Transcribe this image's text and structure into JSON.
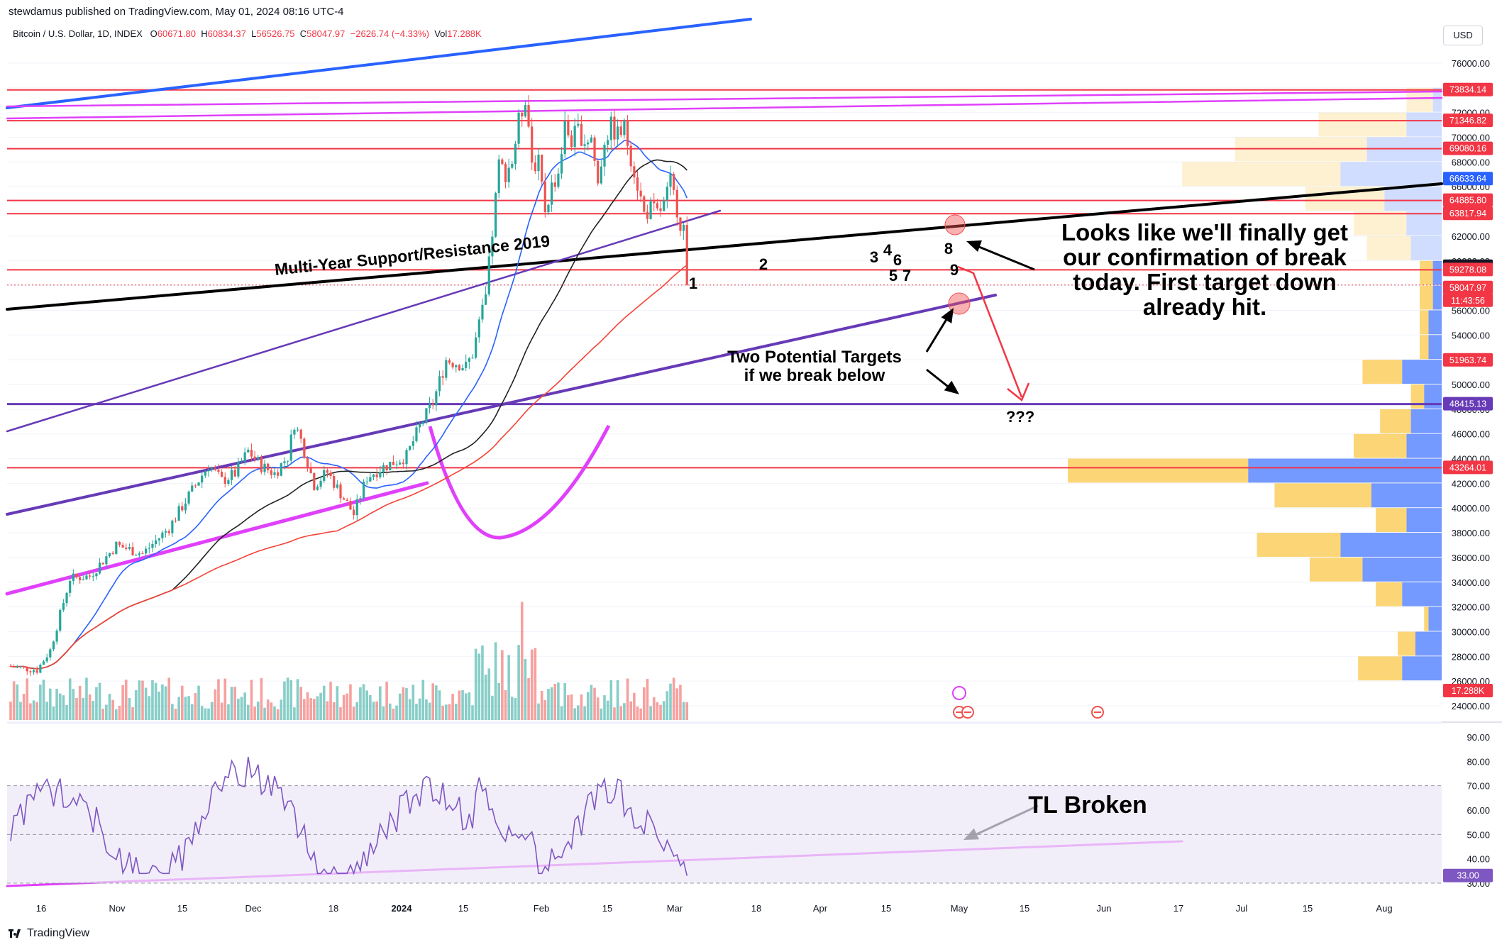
{
  "header": {
    "publisher_line": "stewdamus published on TradingView.com, May 01, 2024 08:16 UTC-4"
  },
  "symbol_bar": {
    "name": "Bitcoin / U.S. Dollar, 1D, INDEX",
    "open_label": "O",
    "open": "60671.80",
    "high_label": "H",
    "high": "60834.37",
    "low_label": "L",
    "low": "56526.75",
    "close_label": "C",
    "close": "58047.97",
    "change": "−2626.74 (−4.33%)",
    "vol_label": "Vol",
    "vol": "17.288K"
  },
  "currency_button": "USD",
  "footer": {
    "brand": "TradingView"
  },
  "colors": {
    "up": "#26a69a",
    "down": "#ef5350",
    "resistance": "#f23645",
    "magenta": "#e040fb",
    "purple": "#673ab7",
    "blue_trend": "#2962ff",
    "ma_blue": "#2962ff",
    "ma_black": "#222222",
    "ma_red": "#f44336",
    "rsi_line": "#7e57c2"
  },
  "annotations": {
    "support_label": "Multi-Year Support/Resistance 2019",
    "main_note": [
      "Looks like we'll finally get",
      "our confirmation of break",
      "today. First target down",
      "already hit."
    ],
    "targets_note": [
      "Two Potential Targets",
      "if we break below"
    ],
    "question": "???",
    "rsi_note": "TL Broken",
    "wave_numbers": [
      "1",
      "2",
      "3",
      "4",
      "5",
      "6",
      "7",
      "8",
      "9"
    ]
  },
  "chart_data": [
    {
      "type": "candlestick",
      "title": "Bitcoin / U.S. Dollar, 1D, INDEX",
      "x_ticks": [
        "16",
        "Nov",
        "15",
        "Dec",
        "18",
        "2024",
        "15",
        "Feb",
        "15",
        "Mar",
        "18",
        "Apr",
        "15",
        "May",
        "15",
        "Jun",
        "17",
        "Jul",
        "15",
        "Aug"
      ],
      "y_ticks": [
        "76000.00",
        "74000.00",
        "72000.00",
        "70000.00",
        "68000.00",
        "66000.00",
        "64000.00",
        "62000.00",
        "60000.00",
        "58000.00",
        "56000.00",
        "54000.00",
        "52000.00",
        "50000.00",
        "48000.00",
        "46000.00",
        "44000.00",
        "42000.00",
        "40000.00",
        "38000.00",
        "36000.00",
        "34000.00",
        "32000.00",
        "30000.00",
        "28000.00",
        "26000.00",
        "24000.00"
      ],
      "ylim": [
        23000,
        77000
      ],
      "price_tags": [
        {
          "value": "73834.14",
          "color": "#f23645"
        },
        {
          "value": "71346.82",
          "color": "#f23645"
        },
        {
          "value": "69080.16",
          "color": "#f23645"
        },
        {
          "value": "66633.64",
          "color": "#2962ff"
        },
        {
          "value": "64885.80",
          "color": "#f23645"
        },
        {
          "value": "63817.94",
          "color": "#f23645"
        },
        {
          "value": "59544.24",
          "color": "#131722"
        },
        {
          "value": "59278.08",
          "color": "#f23645"
        },
        {
          "value": "58047.97",
          "color": "#f23645"
        },
        {
          "value": "11:43:56",
          "color": "#f23645"
        },
        {
          "value": "51963.74",
          "color": "#f23645"
        },
        {
          "value": "48415.13",
          "color": "#673ab7"
        },
        {
          "value": "43264.01",
          "color": "#f23645"
        },
        {
          "value": "17.288K",
          "color": "#f23645"
        }
      ],
      "horizontal_levels": [
        73834.14,
        71346.82,
        69080.16,
        64885.8,
        63817.94,
        59278.08,
        48415.13,
        43264.01
      ],
      "last_close": 58047.97,
      "volume_profile": [
        {
          "price": 73000,
          "buy": 0.06,
          "sell": 0.02
        },
        {
          "price": 71000,
          "buy": 0.2,
          "sell": 0.08
        },
        {
          "price": 69000,
          "buy": 0.3,
          "sell": 0.17
        },
        {
          "price": 67000,
          "buy": 0.36,
          "sell": 0.23
        },
        {
          "price": 65000,
          "buy": 0.18,
          "sell": 0.13
        },
        {
          "price": 63000,
          "buy": 0.12,
          "sell": 0.08
        },
        {
          "price": 61000,
          "buy": 0.1,
          "sell": 0.07
        },
        {
          "price": 59000,
          "buy": 0.03,
          "sell": 0.02
        },
        {
          "price": 57000,
          "buy": 0.03,
          "sell": 0.02
        },
        {
          "price": 55000,
          "buy": 0.02,
          "sell": 0.03
        },
        {
          "price": 53000,
          "buy": 0.02,
          "sell": 0.03
        },
        {
          "price": 51000,
          "buy": 0.09,
          "sell": 0.09
        },
        {
          "price": 49000,
          "buy": 0.03,
          "sell": 0.04
        },
        {
          "price": 47000,
          "buy": 0.07,
          "sell": 0.07
        },
        {
          "price": 45000,
          "buy": 0.12,
          "sell": 0.08
        },
        {
          "price": 43000,
          "buy": 0.41,
          "sell": 0.44
        },
        {
          "price": 41000,
          "buy": 0.22,
          "sell": 0.16
        },
        {
          "price": 39000,
          "buy": 0.07,
          "sell": 0.08
        },
        {
          "price": 37000,
          "buy": 0.19,
          "sell": 0.23
        },
        {
          "price": 35000,
          "buy": 0.12,
          "sell": 0.18
        },
        {
          "price": 33000,
          "buy": 0.06,
          "sell": 0.09
        },
        {
          "price": 31000,
          "buy": 0.01,
          "sell": 0.03
        },
        {
          "price": 29000,
          "buy": 0.04,
          "sell": 0.06
        },
        {
          "price": 27000,
          "buy": 0.1,
          "sell": 0.09
        }
      ]
    },
    {
      "type": "line",
      "title": "RSI",
      "y_ticks": [
        "90.00",
        "80.00",
        "70.00",
        "60.00",
        "50.00",
        "40.00",
        "30.00"
      ],
      "ylim": [
        28,
        93
      ],
      "band": [
        30,
        70
      ],
      "last_value": "33.00"
    }
  ]
}
